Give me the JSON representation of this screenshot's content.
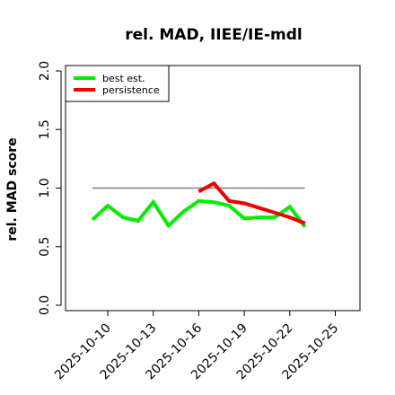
{
  "chart_data": {
    "type": "line",
    "title": "rel. MAD, IIEE/IE-mdl",
    "xlabel": "",
    "ylabel": "rel. MAD score",
    "ylim": [
      0,
      2
    ],
    "y_ticks": [
      "0.0",
      "0.5",
      "1.0",
      "1.5",
      "2.0"
    ],
    "x_tick_labels": [
      "2025-10-10",
      "2025-10-13",
      "2025-10-16",
      "2025-10-19",
      "2025-10-22",
      "2025-10-25"
    ],
    "x_tick_dates": [
      "2025-10-10",
      "2025-10-13",
      "2025-10-16",
      "2025-10-19",
      "2025-10-22",
      "2025-10-25"
    ],
    "legend_position": "top-left",
    "reference_line": {
      "y": 1.0,
      "x_start": "2025-10-09",
      "x_end": "2025-10-23",
      "color": "#808080"
    },
    "series": [
      {
        "name": "best est.",
        "color": "#00ee00",
        "points": [
          [
            "2025-10-09",
            0.73
          ],
          [
            "2025-10-10",
            0.85
          ],
          [
            "2025-10-11",
            0.75
          ],
          [
            "2025-10-12",
            0.72
          ],
          [
            "2025-10-13",
            0.88
          ],
          [
            "2025-10-14",
            0.68
          ],
          [
            "2025-10-15",
            0.8
          ],
          [
            "2025-10-16",
            0.89
          ],
          [
            "2025-10-17",
            0.88
          ],
          [
            "2025-10-18",
            0.85
          ],
          [
            "2025-10-19",
            0.74
          ],
          [
            "2025-10-20",
            0.75
          ],
          [
            "2025-10-21",
            0.75
          ],
          [
            "2025-10-22",
            0.84
          ],
          [
            "2025-10-23",
            0.67
          ]
        ]
      },
      {
        "name": "persistence",
        "color": "#ee0000",
        "points": [
          [
            "2025-10-16",
            0.97
          ],
          [
            "2025-10-17",
            1.04
          ],
          [
            "2025-10-18",
            0.89
          ],
          [
            "2025-10-19",
            0.87
          ],
          [
            "2025-10-20",
            0.83
          ],
          [
            "2025-10-21",
            0.79
          ],
          [
            "2025-10-22",
            0.75
          ],
          [
            "2025-10-23",
            0.7
          ]
        ]
      }
    ]
  }
}
